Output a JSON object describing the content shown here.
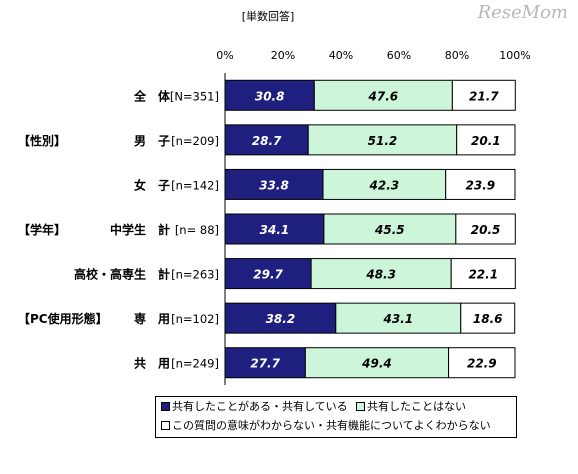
{
  "watermark": "ReseMom",
  "colors": {
    "s1": "#1f1f80",
    "s2": "#ccf5d9",
    "s3": "#ffffff",
    "border": "#000000"
  },
  "chart_data": {
    "type": "bar",
    "orientation": "horizontal",
    "stacked": true,
    "title": "[単数回答]",
    "xlim": [
      0,
      100
    ],
    "x_ticks": [
      "0%",
      "20%",
      "40%",
      "60%",
      "80%",
      "100%"
    ],
    "rows": [
      {
        "group": "",
        "label": "全　体",
        "n": "[N=351]"
      },
      {
        "group": "【性別】",
        "label": "男　子",
        "n": "[n=209]"
      },
      {
        "group": "",
        "label": "女　子",
        "n": "[n=142]"
      },
      {
        "group": "【学年】",
        "label": "中学生　計",
        "n": "[n= 88]"
      },
      {
        "group": "",
        "label": "高校・高専生　計",
        "n": "[n=263]"
      },
      {
        "group": "【PC使用形態】",
        "label": "専　用",
        "n": "[n=102]"
      },
      {
        "group": "",
        "label": "共　用",
        "n": "[n=249]"
      }
    ],
    "series": [
      {
        "name": "共有したことがある・共有している",
        "values": [
          30.8,
          28.7,
          33.8,
          34.1,
          29.7,
          38.2,
          27.7
        ]
      },
      {
        "name": "共有したことはない",
        "values": [
          47.6,
          51.2,
          42.3,
          45.5,
          48.3,
          43.1,
          49.4
        ]
      },
      {
        "name": "この質問の意味がわからない・共有機能についてよくわからない",
        "values": [
          21.7,
          20.1,
          23.9,
          20.5,
          22.1,
          18.6,
          22.9
        ]
      }
    ]
  }
}
